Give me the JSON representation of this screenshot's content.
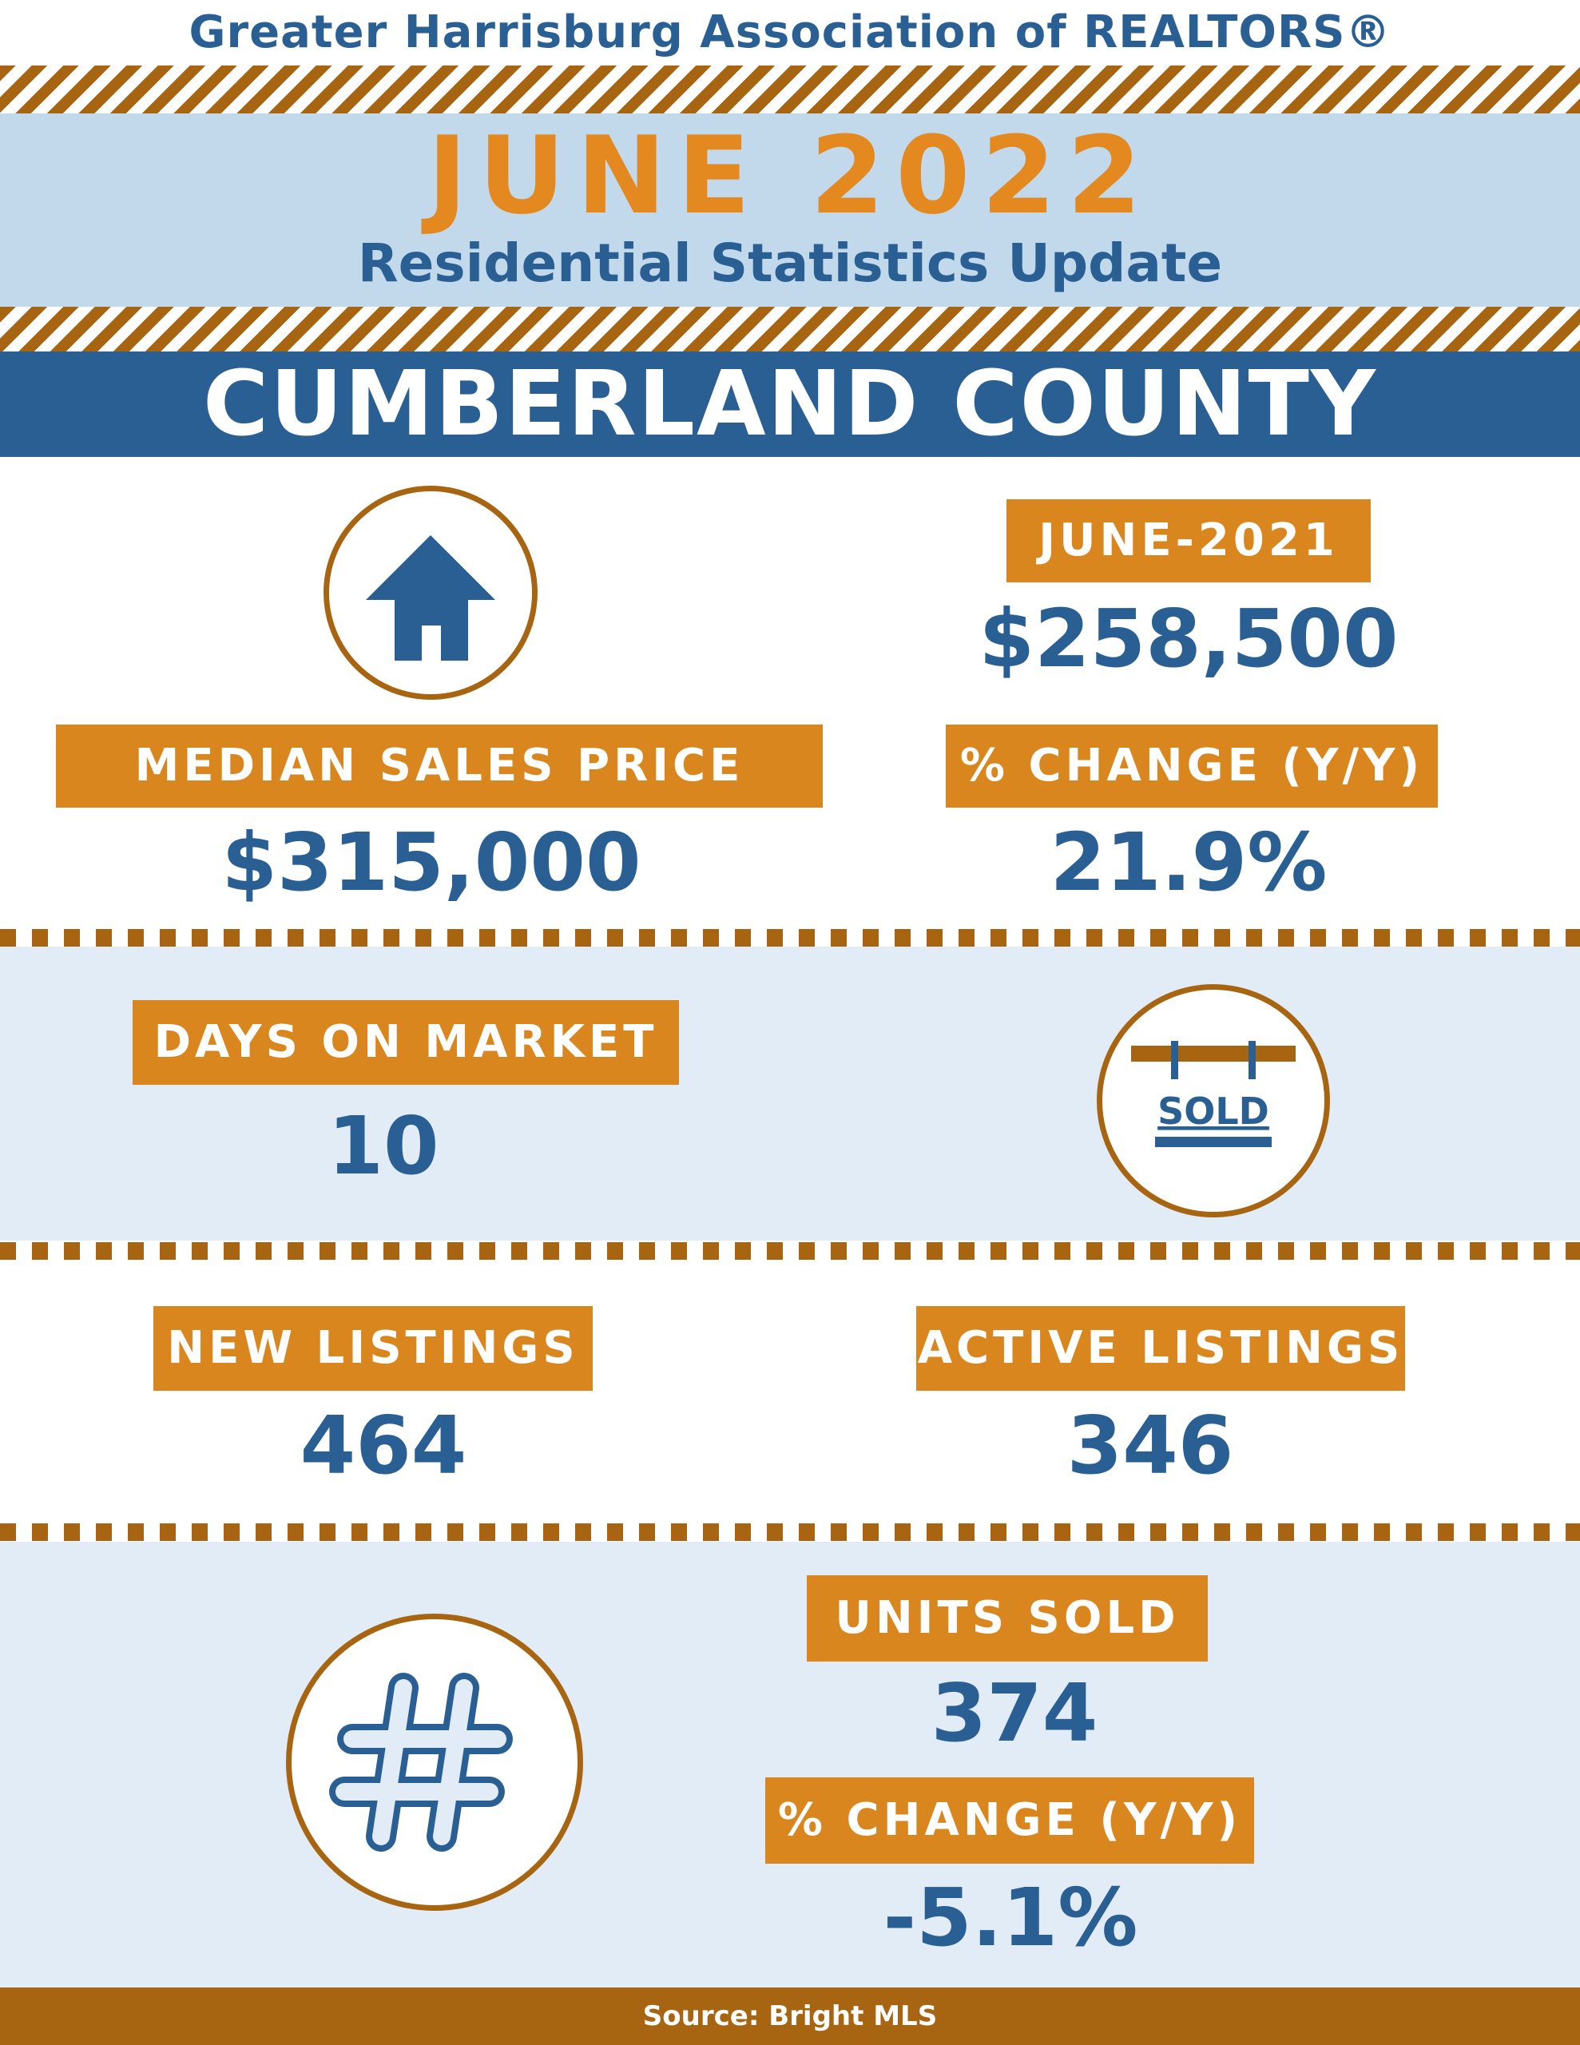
{
  "header": {
    "organization": "Greater Harrisburg Association of REALTORS®",
    "month_title": "JUNE 2022",
    "subtitle": "Residential Statistics Update",
    "county": "CUMBERLAND COUNTY"
  },
  "median_price": {
    "label": "MEDIAN SALES PRICE",
    "value": "$315,000",
    "prior_label": "JUNE-2021",
    "prior_value": "$258,500",
    "change_label": "% CHANGE (Y/Y)",
    "change_value": "21.9%",
    "icon": "house-icon"
  },
  "days_on_market": {
    "label": "DAYS ON MARKET",
    "value": "10",
    "icon": "sold-sign-icon",
    "sign_text": "SOLD"
  },
  "listings": {
    "new_label": "NEW LISTINGS",
    "new_value": "464",
    "active_label": "ACTIVE LISTINGS",
    "active_value": "346"
  },
  "units_sold": {
    "label": "UNITS SOLD",
    "value": "374",
    "change_label": "% CHANGE (Y/Y)",
    "change_value": "-5.1%",
    "icon": "hashtag-icon"
  },
  "footer": {
    "source": "Source: Bright MLS"
  },
  "colors": {
    "blue": "#2a5f94",
    "orange": "#d9861f",
    "brown": "#a86511",
    "light_blue": "#c2d9ec",
    "pale_blue": "#e1ecf6"
  }
}
